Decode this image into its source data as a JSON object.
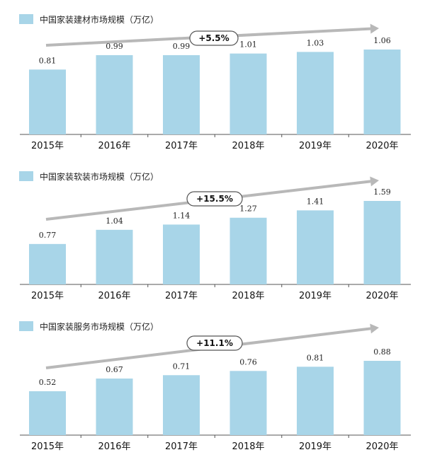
{
  "colors": {
    "bar": "#a8d5e8",
    "axis": "#555555",
    "arrow": "#b8b8b8",
    "pill_border": "#555555"
  },
  "chart_data": [
    {
      "type": "bar",
      "legend": "中国家装建材市场规模（万亿）",
      "growth": "+5.5%",
      "categories": [
        "2015年",
        "2016年",
        "2017年",
        "2018年",
        "2019年",
        "2020年"
      ],
      "values": [
        0.81,
        0.99,
        0.99,
        1.01,
        1.03,
        1.06
      ],
      "value_labels": [
        "0.81",
        "0.99",
        "0.99",
        "1.01",
        "1.03",
        "1.06"
      ],
      "ylim": [
        0.0,
        1.25
      ]
    },
    {
      "type": "bar",
      "legend": "中国家装软装市场规模（万亿）",
      "growth": "+15.5%",
      "categories": [
        "2015年",
        "2016年",
        "2017年",
        "2018年",
        "2019年",
        "2020年"
      ],
      "values": [
        0.77,
        1.04,
        1.14,
        1.27,
        1.41,
        1.59
      ],
      "value_labels": [
        "0.77",
        "1.04",
        "1.14",
        "1.27",
        "1.41",
        "1.59"
      ],
      "ylim": [
        0.0,
        1.9
      ]
    },
    {
      "type": "bar",
      "legend": "中国家装服务市场规模（万亿）",
      "growth": "+11.1%",
      "categories": [
        "2015年",
        "2016年",
        "2017年",
        "2018年",
        "2019年",
        "2020年"
      ],
      "values": [
        0.52,
        0.67,
        0.71,
        0.76,
        0.81,
        0.88
      ],
      "value_labels": [
        "0.52",
        "0.67",
        "0.71",
        "0.76",
        "0.81",
        "0.88"
      ],
      "ylim": [
        0.0,
        1.0
      ]
    }
  ]
}
